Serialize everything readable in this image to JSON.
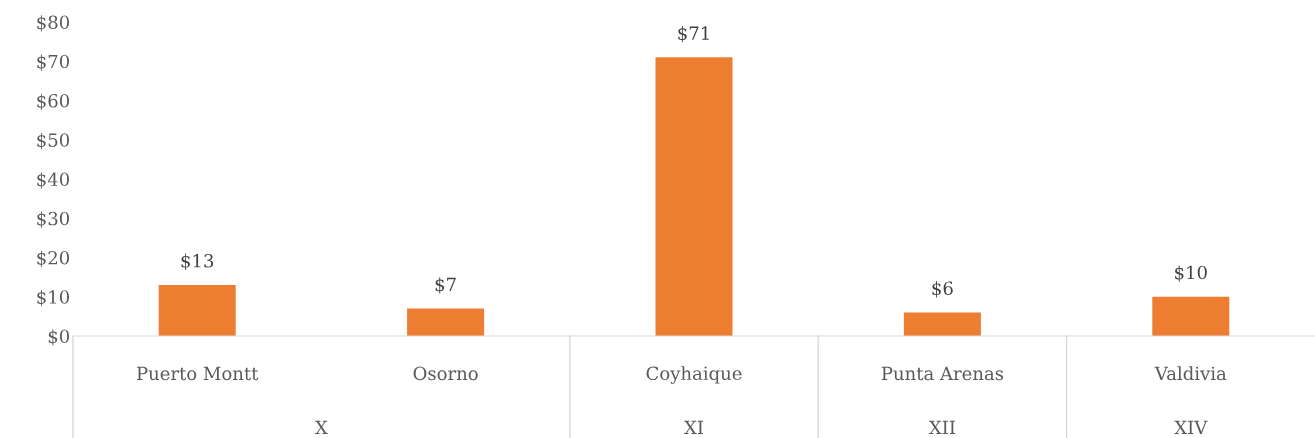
{
  "chart_data": {
    "type": "bar",
    "categories": [
      "Puerto Montt",
      "Osorno",
      "Coyhaique",
      "Punta Arenas",
      "Valdivia"
    ],
    "values": [
      13,
      7,
      71,
      6,
      10
    ],
    "color": "#ed7d31",
    "value_labels": [
      "$13",
      "$7",
      "$71",
      "$6",
      "$10"
    ],
    "ylim": [
      0,
      80
    ],
    "yticks": [
      {
        "value": 0,
        "label": "$0"
      },
      {
        "value": 10,
        "label": "$10"
      },
      {
        "value": 20,
        "label": "$20"
      },
      {
        "value": 30,
        "label": "$30"
      },
      {
        "value": 40,
        "label": "$40"
      },
      {
        "value": 50,
        "label": "$50"
      },
      {
        "value": 60,
        "label": "$60"
      },
      {
        "value": 70,
        "label": "$70"
      },
      {
        "value": 80,
        "label": "$80"
      }
    ],
    "annotations": [
      "X",
      "XI",
      "XII",
      "XIV"
    ],
    "grid": false
  }
}
